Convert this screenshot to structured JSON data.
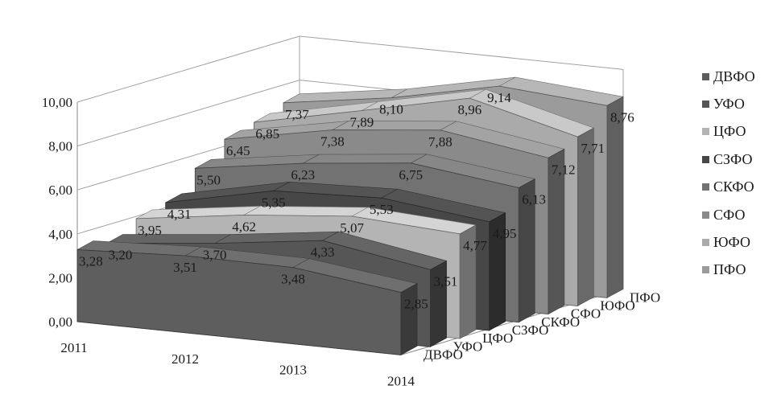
{
  "chart_data": {
    "type": "area",
    "title": "",
    "x": [
      "2011",
      "2012",
      "2013",
      "2014"
    ],
    "ylim": [
      0,
      10
    ],
    "y_ticks": [
      "0,00",
      "2,00",
      "4,00",
      "6,00",
      "8,00",
      "10,00"
    ],
    "depth_axis_labels": [
      "ДВФО",
      "УФО",
      "ЦФО",
      "СЗФО",
      "СКФО",
      "СФО",
      "ЮФО",
      "ПФО"
    ],
    "legend_position": "right",
    "series": [
      {
        "name": "ДВФО",
        "color": "#5e5e5e",
        "values": [
          3.28,
          3.51,
          3.48,
          2.85
        ],
        "labels": [
          "3,28",
          "3,51",
          "3,48",
          "2,85"
        ]
      },
      {
        "name": "УФО",
        "color": "#565656",
        "values": [
          3.2,
          3.7,
          4.33,
          3.51
        ],
        "labels": [
          "3,20",
          "3,70",
          "4,33",
          "3,51"
        ]
      },
      {
        "name": "ЦФО",
        "color": "#b4b4b4",
        "values": [
          3.95,
          4.62,
          5.07,
          4.77
        ],
        "labels": [
          "3,95",
          "4,62",
          "5,07",
          "4,77"
        ]
      },
      {
        "name": "СЗФО",
        "color": "#474747",
        "values": [
          4.31,
          5.35,
          5.53,
          4.95
        ],
        "labels": [
          "4,31",
          "5,35",
          "5,53",
          "4,95"
        ]
      },
      {
        "name": "СКФО",
        "color": "#727272",
        "values": [
          5.5,
          6.23,
          6.75,
          6.13
        ],
        "labels": [
          "5,50",
          "6,23",
          "6,75",
          "6,13"
        ]
      },
      {
        "name": "СФО",
        "color": "#8a8a8a",
        "values": [
          6.45,
          7.38,
          7.88,
          7.12
        ],
        "labels": [
          "6,45",
          "7,38",
          "7,88",
          "7,12"
        ]
      },
      {
        "name": "ЮФО",
        "color": "#aaaaaa",
        "values": [
          6.85,
          7.89,
          8.96,
          7.71
        ],
        "labels": [
          "6,85",
          "7,89",
          "8,96",
          "7,71"
        ]
      },
      {
        "name": "ПФО",
        "color": "#9b9b9b",
        "values": [
          7.37,
          8.1,
          9.14,
          8.76
        ],
        "labels": [
          "7,37",
          "8,10",
          "9,14",
          "8,76"
        ]
      }
    ]
  }
}
